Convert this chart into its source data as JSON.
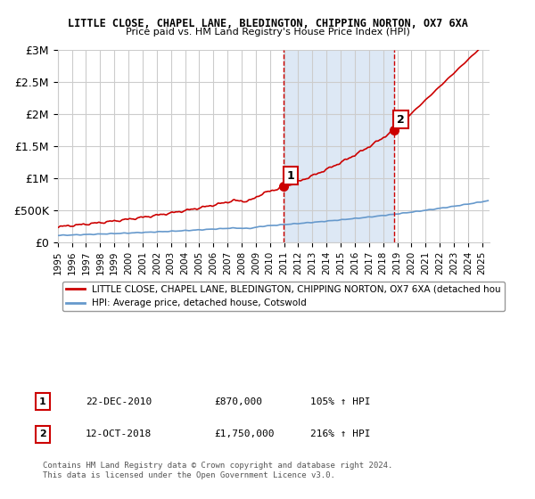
{
  "title1": "LITTLE CLOSE, CHAPEL LANE, BLEDINGTON, CHIPPING NORTON, OX7 6XA",
  "title2": "Price paid vs. HM Land Registry's House Price Index (HPI)",
  "xlabel": "",
  "ylabel": "",
  "ylim": [
    0,
    3000000
  ],
  "xlim_start": 1995.0,
  "xlim_end": 2025.5,
  "yticks": [
    0,
    500000,
    1000000,
    1500000,
    2000000,
    2500000,
    3000000
  ],
  "ytick_labels": [
    "£0",
    "£500K",
    "£1M",
    "£1.5M",
    "£2M",
    "£2.5M",
    "£3M"
  ],
  "xticks": [
    1995,
    1996,
    1997,
    1998,
    1999,
    2000,
    2001,
    2002,
    2003,
    2004,
    2005,
    2006,
    2007,
    2008,
    2009,
    2010,
    2011,
    2012,
    2013,
    2014,
    2015,
    2016,
    2017,
    2018,
    2019,
    2020,
    2021,
    2022,
    2023,
    2024,
    2025
  ],
  "marker1_x": 2010.97,
  "marker1_y": 870000,
  "marker1_label": "1",
  "marker2_x": 2018.78,
  "marker2_y": 1750000,
  "marker2_label": "2",
  "vline1_x": 2010.97,
  "vline2_x": 2018.78,
  "shade_xmin": 2010.97,
  "shade_xmax": 2018.78,
  "legend_line1": "LITTLE CLOSE, CHAPEL LANE, BLEDINGTON, CHIPPING NORTON, OX7 6XA (detached hou",
  "legend_line2": "HPI: Average price, detached house, Cotswold",
  "table_row1": [
    "1",
    "22-DEC-2010",
    "£870,000",
    "105% ↑ HPI"
  ],
  "table_row2": [
    "2",
    "12-OCT-2018",
    "£1,750,000",
    "216% ↑ HPI"
  ],
  "footer": "Contains HM Land Registry data © Crown copyright and database right 2024.\nThis data is licensed under the Open Government Licence v3.0.",
  "hpi_color": "#6699cc",
  "price_color": "#cc0000",
  "shade_color": "#dde8f5",
  "grid_color": "#cccccc",
  "background_color": "#ffffff"
}
